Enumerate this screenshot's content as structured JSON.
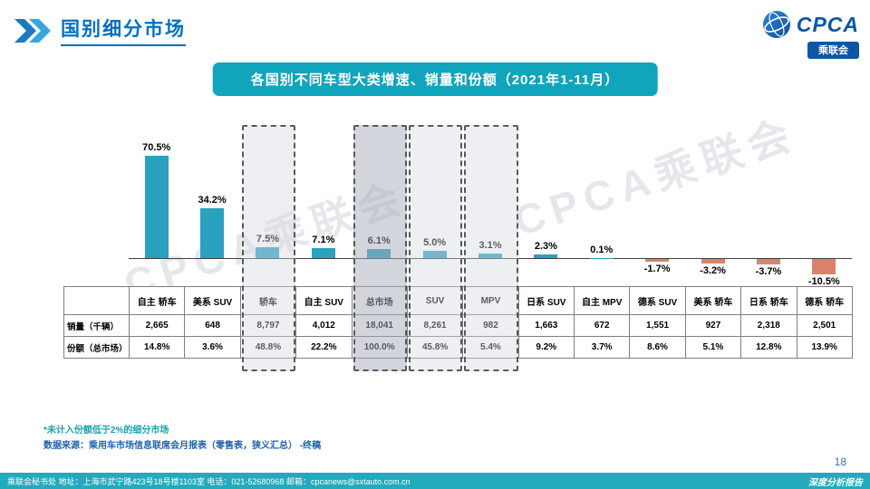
{
  "page": {
    "title": "国别细分市场",
    "page_number": "18",
    "watermark": "CPCA乘联会",
    "notes": {
      "note1": "*未计入份额低于2%的细分市场",
      "note2": "数据来源：乘用车市场信息联席会月报表（零售表，狭义汇总） -终稿"
    },
    "footer": {
      "left": "乘联会秘书处   地址：上海市武宁路423号18号楼1103室  电话：021-52680968  邮箱：cpcanews@sxtauto.com.cn",
      "right": "深度分析报告"
    }
  },
  "logo": {
    "cpca": "CPCA",
    "name": "乘联会"
  },
  "chart_title": "各国别不同车型大类增速、销量和份额（2021年1-11月）",
  "chart_data": {
    "type": "bar",
    "title": "各国别不同车型大类增速、销量和份额（2021年1-11月）",
    "categories": [
      "自主 轿车",
      "美系 SUV",
      "轿车",
      "自主 SUV",
      "总市场",
      "SUV",
      "MPV",
      "日系 SUV",
      "自主 MPV",
      "德系 SUV",
      "美系 轿车",
      "日系 轿车",
      "德系 轿车"
    ],
    "growth_values": [
      70.5,
      34.2,
      7.5,
      7.1,
      6.1,
      5.0,
      3.1,
      2.3,
      0.1,
      -1.7,
      -3.2,
      -3.7,
      -10.5
    ],
    "growth_labels": [
      "70.5%",
      "34.2%",
      "7.5%",
      "7.1%",
      "6.1%",
      "5.0%",
      "3.1%",
      "2.3%",
      "0.1%",
      "-1.7%",
      "-3.2%",
      "-3.7%",
      "-10.5%"
    ],
    "sales_row_label": "销量（千辆）",
    "sales": [
      "2,665",
      "648",
      "8,797",
      "4,012",
      "18,041",
      "8,261",
      "982",
      "1,663",
      "672",
      "1,551",
      "927",
      "2,318",
      "2,501"
    ],
    "share_row_label": "份额（总市场）",
    "share": [
      "14.8%",
      "3.6%",
      "48.8%",
      "22.2%",
      "100.0%",
      "45.8%",
      "5.4%",
      "9.2%",
      "3.7%",
      "8.6%",
      "5.1%",
      "12.8%",
      "13.9%"
    ],
    "highlighted_categories": [
      "轿车",
      "总市场",
      "SUV",
      "MPV"
    ],
    "emphasized_category": "总市场",
    "colors": {
      "positive_bar": "#29A1BF",
      "negative_bar": "#D9836E",
      "accent_teal": "#10A5BC",
      "title_blue": "#0070C0"
    },
    "ylim": [
      -12,
      75
    ],
    "grid": false,
    "legend": "none"
  }
}
